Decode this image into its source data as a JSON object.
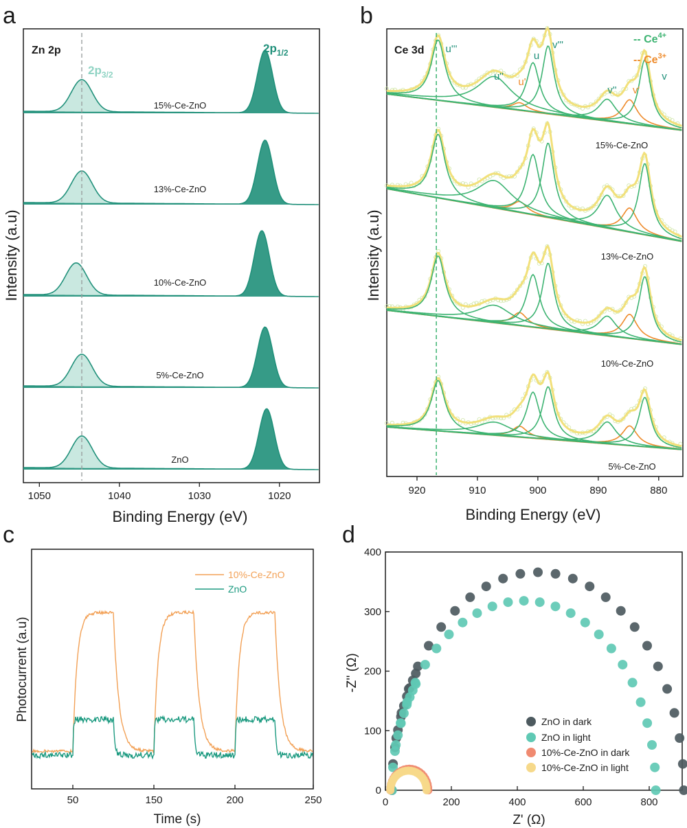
{
  "colors": {
    "teal_dark": "#20907a",
    "teal_light": "#bfe4da",
    "green": "#3cb371",
    "orange": "#ee8a2a",
    "yellow": "#f2e07a",
    "zno_dark_marker": "#4d5a5f",
    "zno_light_marker": "#5fc9b4",
    "ce_dark_marker": "#f08a70",
    "ce_light_marker": "#f6d98a",
    "line_orange": "#f2a055",
    "line_teal": "#1c9a80"
  },
  "panels": {
    "a": {
      "letter": "a",
      "title": "Zn 2p",
      "peak_3_2": "2p",
      "peak_3_2_sub": "3/2",
      "peak_1_2": "2p",
      "peak_1_2_sub": "1/2"
    },
    "b": {
      "letter": "b",
      "title": "Ce 3d",
      "legend_ce4": "-- Ce",
      "legend_ce4_sup": "4+",
      "legend_ce3": "-- Ce",
      "legend_ce3_sup": "3+",
      "peak_labels": [
        "u'''",
        "u''",
        "u'",
        "u",
        "v'''",
        "v''",
        "v'",
        "v"
      ]
    },
    "c": {
      "letter": "c"
    },
    "d": {
      "letter": "d"
    }
  },
  "chart_data": [
    {
      "type": "line",
      "panel": "a",
      "xlabel": "Binding Energy (eV)",
      "ylabel": "Intensity (a.u)",
      "xlim": [
        1052,
        1015
      ],
      "xticks": [
        1050,
        1040,
        1030,
        1020
      ],
      "reference_line_x": 1044.7,
      "series": [
        {
          "name": "15%-Ce-ZnO",
          "peak_3_2_eV": 1044.7,
          "peak_1_2_eV": 1021.8,
          "height_3_2": 0.45,
          "height_1_2": 0.88
        },
        {
          "name": "13%-Ce-ZnO",
          "peak_3_2_eV": 1044.7,
          "peak_1_2_eV": 1021.8,
          "height_3_2": 0.45,
          "height_1_2": 0.9
        },
        {
          "name": "10%-Ce-ZnO",
          "peak_3_2_eV": 1045.4,
          "peak_1_2_eV": 1022.2,
          "height_3_2": 0.45,
          "height_1_2": 0.92
        },
        {
          "name": "5%-Ce-ZnO",
          "peak_3_2_eV": 1044.7,
          "peak_1_2_eV": 1021.8,
          "height_3_2": 0.45,
          "height_1_2": 0.85
        },
        {
          "name": "ZnO",
          "peak_3_2_eV": 1044.7,
          "peak_1_2_eV": 1021.6,
          "height_3_2": 0.45,
          "height_1_2": 0.85
        }
      ]
    },
    {
      "type": "line",
      "panel": "b",
      "xlabel": "Binding Energy (eV)",
      "ylabel": "Intensity (a.u)",
      "xlim": [
        925,
        876
      ],
      "xticks": [
        920,
        910,
        900,
        890,
        880
      ],
      "reference_line_x": 916.8,
      "series": [
        {
          "name": "15%-Ce-ZnO"
        },
        {
          "name": "13%-Ce-ZnO"
        },
        {
          "name": "10%-Ce-ZnO"
        },
        {
          "name": "5%-Ce-ZnO"
        }
      ],
      "ce4_peaks_eV": [
        916.5,
        907.2,
        900.8,
        898.3,
        888.5,
        882.3
      ],
      "ce3_peaks_eV": [
        903.0,
        884.8
      ]
    },
    {
      "type": "line",
      "panel": "c",
      "xlabel": "Time (s)",
      "ylabel": "Photocurrent (a.u)",
      "xticks": [
        "50",
        "150",
        "200",
        "250"
      ],
      "light_on_s": [
        50,
        102,
        153
      ],
      "light_off_s": [
        76,
        127,
        178
      ],
      "series": [
        {
          "name": "10%-Ce-ZnO",
          "baseline": 0.1,
          "on_level": 0.96
        },
        {
          "name": "ZnO",
          "baseline": 0.1,
          "on_level": 0.24
        }
      ]
    },
    {
      "type": "scatter",
      "panel": "d",
      "xlabel": "Z' (Ω)",
      "ylabel": "-Z'' (Ω)",
      "xlim": [
        0,
        900
      ],
      "ylim": [
        0,
        400
      ],
      "xticks": [
        0,
        200,
        400,
        600,
        800
      ],
      "yticks": [
        0,
        100,
        200,
        300,
        400
      ],
      "series": [
        {
          "name": "ZnO in dark",
          "x_min": 20,
          "x_max": 905,
          "y_max": 366
        },
        {
          "name": "ZnO in light",
          "x_min": 20,
          "x_max": 820,
          "y_max": 318
        },
        {
          "name": "10%-Ce-ZnO in dark",
          "x_min": 15,
          "x_max": 130,
          "y_max": 36
        },
        {
          "name": "10%-Ce-ZnO in light",
          "x_min": 15,
          "x_max": 125,
          "y_max": 33
        }
      ]
    }
  ]
}
